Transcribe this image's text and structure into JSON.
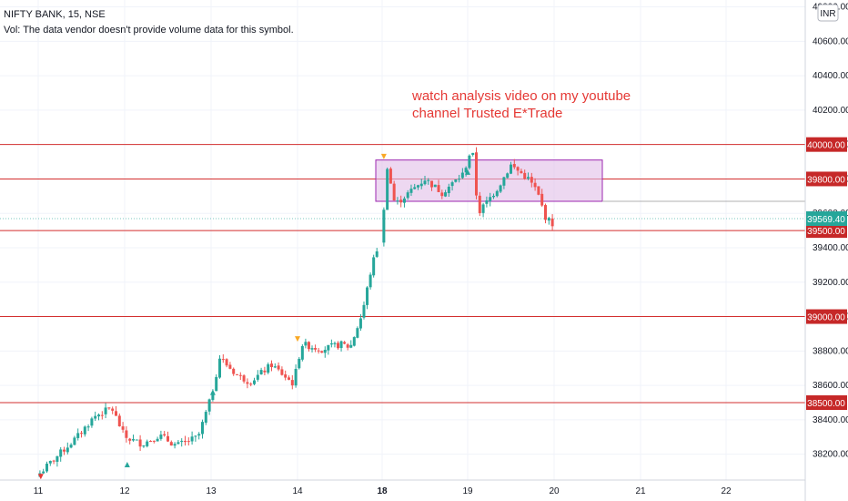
{
  "legend": {
    "symbol": "NIFTY BANK, 15, NSE",
    "vol_note": "Vol: The data vendor doesn't provide volume data for this symbol."
  },
  "currency": "INR",
  "chart_data": {
    "type": "candlestick",
    "ylim": [
      38050,
      40840
    ],
    "y_ticks": [
      38200,
      38400,
      38600,
      38800,
      39000,
      39200,
      39400,
      39600,
      39800,
      40000,
      40200,
      40400,
      40600,
      40800
    ],
    "x_ticks": [
      "11",
      "12",
      "13",
      "14",
      "18",
      "19",
      "20",
      "21",
      "22"
    ],
    "x_bold": [
      "18"
    ],
    "last_price": 39569.4,
    "last_price_label": "39569.40",
    "levels": [
      {
        "value": 40000.0,
        "label": "40000.00"
      },
      {
        "value": 39800.0,
        "label": "39800.00"
      },
      {
        "value": 39500.0,
        "label": "39500.00"
      },
      {
        "value": 39000.0,
        "label": "39000.00"
      },
      {
        "value": 38500.0,
        "label": "38500.00"
      }
    ],
    "consolidation_box": {
      "start_day": "18",
      "end_day": "20.5",
      "top": 39910,
      "bottom": 39670
    },
    "annotation": [
      "watch analysis video on my youtube",
      "channel Trusted E*Trade"
    ],
    "anchors": [
      {
        "d": 11.0,
        "v": 38080
      },
      {
        "d": 11.2,
        "v": 38180
      },
      {
        "d": 11.45,
        "v": 38300
      },
      {
        "d": 11.65,
        "v": 38420
      },
      {
        "d": 11.85,
        "v": 38470
      },
      {
        "d": 12.0,
        "v": 38300
      },
      {
        "d": 12.2,
        "v": 38260
      },
      {
        "d": 12.4,
        "v": 38310
      },
      {
        "d": 12.6,
        "v": 38250
      },
      {
        "d": 12.85,
        "v": 38300
      },
      {
        "d": 13.0,
        "v": 38530
      },
      {
        "d": 13.1,
        "v": 38760
      },
      {
        "d": 13.3,
        "v": 38660
      },
      {
        "d": 13.45,
        "v": 38620
      },
      {
        "d": 13.7,
        "v": 38720
      },
      {
        "d": 13.95,
        "v": 38610
      },
      {
        "d": 14.05,
        "v": 38840
      },
      {
        "d": 14.3,
        "v": 38810
      },
      {
        "d": 14.55,
        "v": 38840
      },
      {
        "d": 14.65,
        "v": 38820
      },
      {
        "d": 14.8,
        "v": 39020
      },
      {
        "d": 14.92,
        "v": 39300
      },
      {
        "d": 15.0,
        "v": 39420
      },
      {
        "d": 18.0,
        "v": 39420
      },
      {
        "d": 18.05,
        "v": 39900
      },
      {
        "d": 18.15,
        "v": 39650
      },
      {
        "d": 18.5,
        "v": 39800
      },
      {
        "d": 18.7,
        "v": 39720
      },
      {
        "d": 18.95,
        "v": 39830
      },
      {
        "d": 19.05,
        "v": 39990
      },
      {
        "d": 19.12,
        "v": 39600
      },
      {
        "d": 19.35,
        "v": 39750
      },
      {
        "d": 19.5,
        "v": 39880
      },
      {
        "d": 19.7,
        "v": 39800
      },
      {
        "d": 19.8,
        "v": 39730
      },
      {
        "d": 19.9,
        "v": 39580
      },
      {
        "d": 19.97,
        "v": 39540
      }
    ],
    "day_sessions": [
      {
        "start": 11,
        "end": 12
      },
      {
        "start": 12,
        "end": 13
      },
      {
        "start": 13,
        "end": 14
      },
      {
        "start": 14,
        "end": 15
      },
      {
        "start": 18,
        "end": 19
      },
      {
        "start": 19,
        "end": 20
      }
    ],
    "candles_per_day": 25,
    "signals": [
      {
        "d": 11.03,
        "dir": "down",
        "color": "#e53935",
        "v": 38070
      },
      {
        "d": 12.03,
        "dir": "up",
        "color": "#26a69a",
        "v": 38140
      },
      {
        "d": 13.02,
        "dir": "up",
        "color": "#26a69a",
        "v": 38560
      },
      {
        "d": 14.0,
        "dir": "down",
        "color": "#f9a825",
        "v": 38870
      },
      {
        "d": 18.02,
        "dir": "down",
        "color": "#f9a825",
        "v": 39930
      },
      {
        "d": 19.0,
        "dir": "up",
        "color": "#26a69a",
        "v": 39840
      }
    ]
  },
  "colors": {
    "up": "#26a69a",
    "down": "#ef5350",
    "level": "#d32f2f",
    "level_badge": "#c62828",
    "last_badge": "#26a69a",
    "box_fill": "#e1bee7",
    "box_stroke": "#9c27b0",
    "grid": "#f0f3fa",
    "axis_border": "#d1d4dc"
  }
}
